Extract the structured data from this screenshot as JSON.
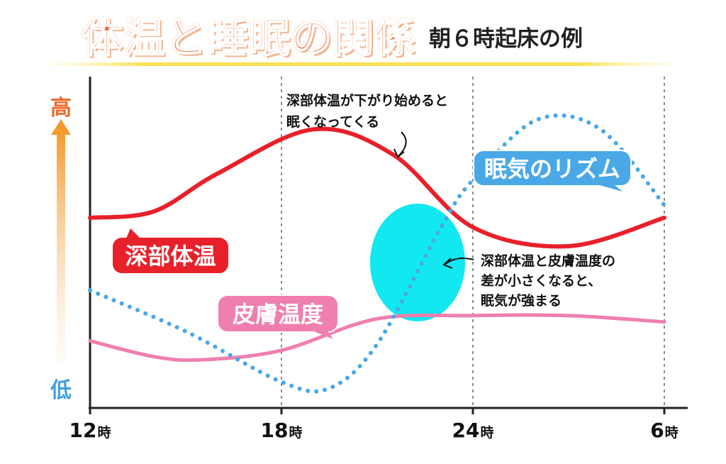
{
  "title": "体温と睡眠の関係",
  "subtitle": "朝６時起床の例",
  "chart_data": {
    "type": "line",
    "x_ticks": [
      "12時",
      "18時",
      "24時",
      "6時"
    ],
    "y_axis": {
      "high_label": "高",
      "low_label": "低"
    },
    "series": [
      {
        "name": "深部体温",
        "color": "#e8202a",
        "style": "solid",
        "points": [
          [
            12,
            0.58
          ],
          [
            14,
            0.6
          ],
          [
            16,
            0.72
          ],
          [
            19,
            0.86
          ],
          [
            21.5,
            0.78
          ],
          [
            24,
            0.55
          ],
          [
            27,
            0.49
          ],
          [
            30,
            0.58
          ]
        ]
      },
      {
        "name": "皮膚温度",
        "color": "#ee7fae",
        "style": "solid",
        "points": [
          [
            12,
            0.19
          ],
          [
            14,
            0.14
          ],
          [
            15.5,
            0.13
          ],
          [
            18,
            0.16
          ],
          [
            21,
            0.26
          ],
          [
            24,
            0.27
          ],
          [
            27,
            0.27
          ],
          [
            30,
            0.25
          ]
        ]
      },
      {
        "name": "眠気のリズム",
        "color": "#4aa8e6",
        "style": "dotted",
        "points": [
          [
            12,
            0.35
          ],
          [
            15,
            0.22
          ],
          [
            18,
            0.06
          ],
          [
            19.5,
            0.04
          ],
          [
            21,
            0.18
          ],
          [
            23,
            0.55
          ],
          [
            24,
            0.7
          ],
          [
            26,
            0.89
          ],
          [
            28,
            0.86
          ],
          [
            30,
            0.62
          ]
        ]
      }
    ],
    "annotations": [
      {
        "id": "temp-drop",
        "text": [
          "深部体温が下がり始めると",
          "眠くなってくる"
        ]
      },
      {
        "id": "gap-small",
        "text": [
          "深部体温と皮膚温度の",
          "差が小さくなると、",
          "眠気が強まる"
        ]
      }
    ],
    "highlight": {
      "color": "#12e8f0"
    },
    "grid": {
      "vertical_dashed": true
    }
  }
}
